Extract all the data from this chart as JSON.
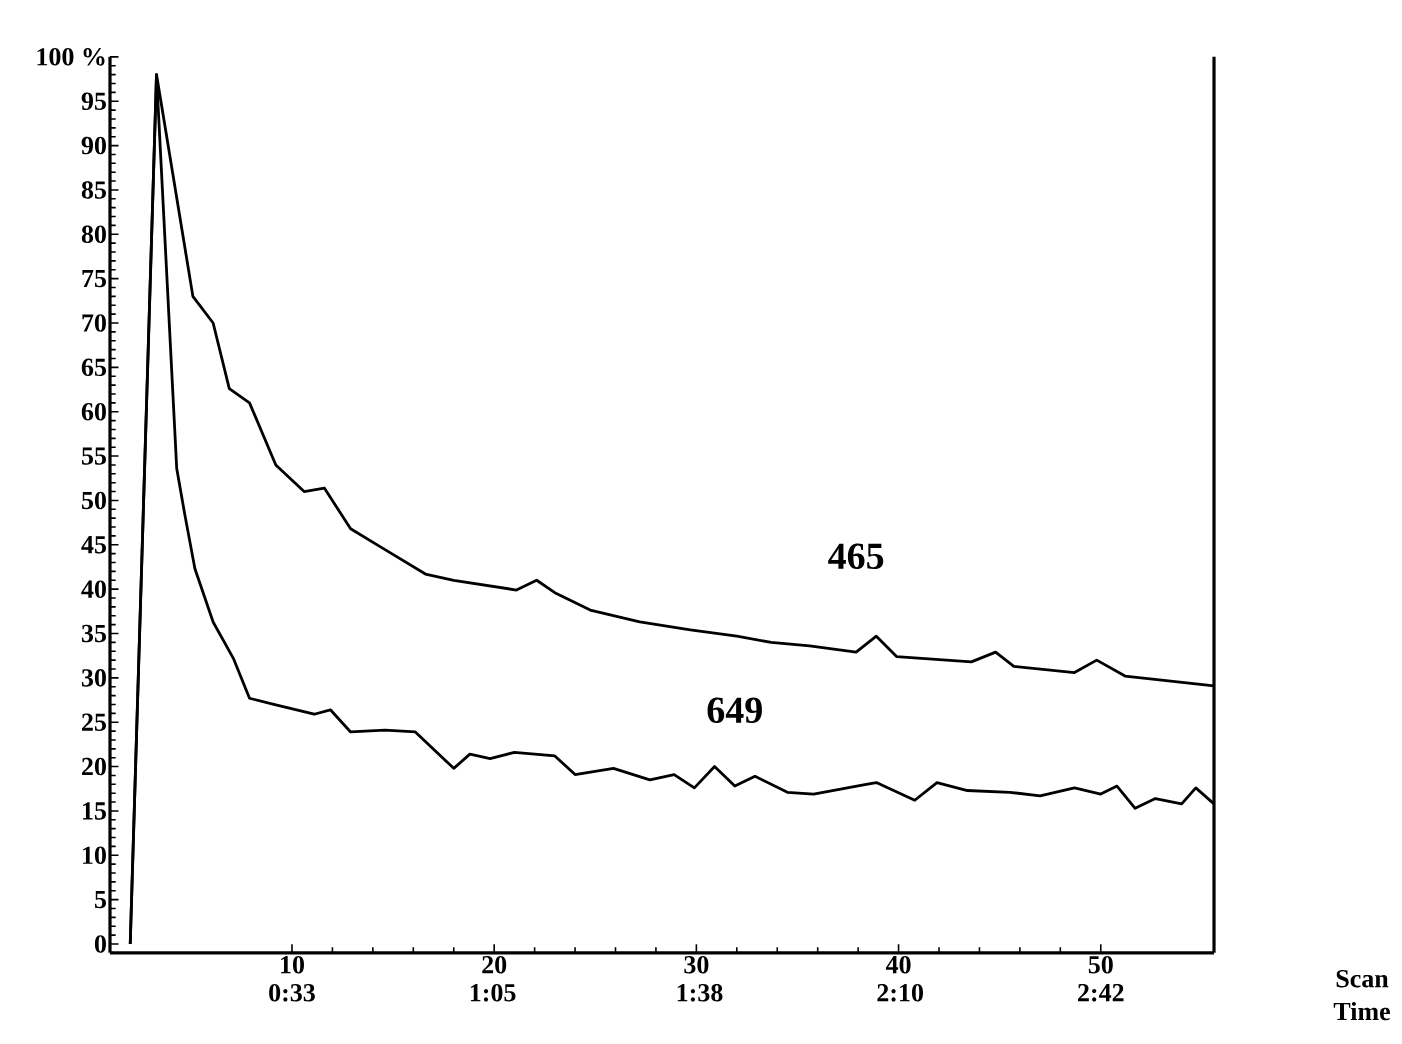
{
  "chart_data": {
    "type": "line",
    "xlabel": "Scan",
    "x2label": "Time",
    "xlim": [
      1,
      55.6
    ],
    "ylim": [
      -1,
      100
    ],
    "xticks": [
      10,
      20,
      30,
      40,
      50
    ],
    "x2lim": [
      3.98,
      180.06
    ],
    "x2ticks": [
      {
        "value": 33,
        "label": "0:33"
      },
      {
        "value": 65,
        "label": "1:05"
      },
      {
        "value": 98,
        "label": "1:38"
      },
      {
        "value": 130,
        "label": "2:10"
      },
      {
        "value": 162,
        "label": "2:42"
      }
    ],
    "yticks": [
      0,
      5,
      10,
      15,
      20,
      25,
      30,
      35,
      40,
      45,
      50,
      55,
      60,
      65,
      70,
      75,
      80,
      85,
      90,
      95,
      {
        "value": 100,
        "label": "100 %"
      }
    ],
    "series": [
      {
        "name": "465",
        "color": "#000000",
        "x": [
          2.0,
          3.3,
          5.1,
          6.1,
          6.9,
          7.9,
          9.2,
          10.6,
          11.6,
          12.9,
          14.5,
          16.6,
          18.0,
          21.1,
          22.1,
          23.0,
          24.8,
          27.2,
          29.7,
          32.0,
          33.7,
          35.6,
          37.9,
          38.9,
          39.9,
          43.6,
          44.8,
          45.7,
          48.7,
          49.8,
          51.2,
          55.6
        ],
        "values": [
          0,
          98,
          73,
          70,
          62.6,
          61,
          54,
          51,
          51.4,
          46.8,
          44.6,
          41.7,
          41,
          39.9,
          41,
          39.6,
          37.6,
          36.3,
          35.4,
          34.7,
          34,
          33.6,
          32.9,
          34.7,
          32.4,
          31.8,
          32.9,
          31.3,
          30.6,
          32,
          30.2,
          29.1
        ]
      },
      {
        "name": "649",
        "color": "#000000",
        "x": [
          2.0,
          3.3,
          4.3,
          4.7,
          5.2,
          6.1,
          7.1,
          7.9,
          9.1,
          11.1,
          11.9,
          12.9,
          14.6,
          16.1,
          18.0,
          18.8,
          19.8,
          21.0,
          23.0,
          24.0,
          25.9,
          27.7,
          28.9,
          29.9,
          30.9,
          31.9,
          32.9,
          34.5,
          35.8,
          38.4,
          38.9,
          40.8,
          41.9,
          43.4,
          45.5,
          47.0,
          48.7,
          50.0,
          50.8,
          51.7,
          52.7,
          54.0,
          54.7,
          55.6
        ],
        "values": [
          0,
          98,
          53.6,
          48.4,
          42.3,
          36.3,
          32.2,
          27.7,
          27,
          25.9,
          26.4,
          23.9,
          24.1,
          23.9,
          19.8,
          21.4,
          20.9,
          21.6,
          21.2,
          19.1,
          19.8,
          18.5,
          19.1,
          17.6,
          20,
          17.8,
          18.9,
          17.1,
          16.9,
          18,
          18.2,
          16.2,
          18.2,
          17.3,
          17.1,
          16.7,
          17.6,
          16.9,
          17.8,
          15.3,
          16.4,
          15.8,
          17.6,
          15.8
        ]
      }
    ]
  }
}
